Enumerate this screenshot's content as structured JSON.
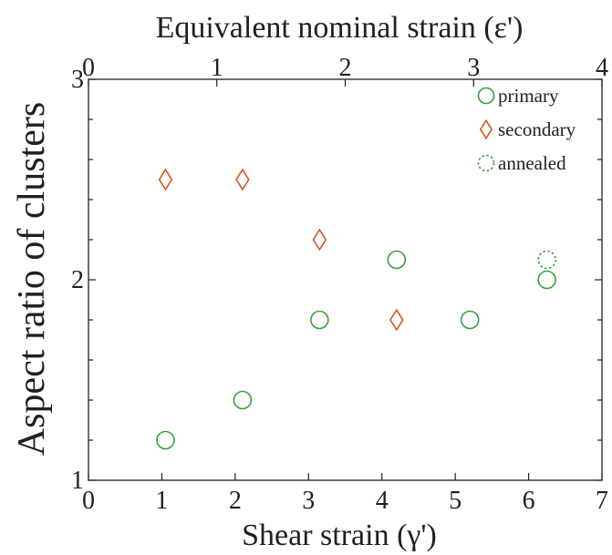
{
  "chart_data": {
    "type": "scatter",
    "xlabel": "Shear strain (γ')",
    "x2label": "Equivalent nominal strain (ε')",
    "ylabel": "Aspect ratio of clusters",
    "xlim": [
      0,
      7
    ],
    "x2lim": [
      0,
      4
    ],
    "ylim": [
      1,
      3
    ],
    "xticks": [
      0,
      1,
      2,
      3,
      4,
      5,
      6,
      7
    ],
    "x2ticks": [
      0,
      1,
      2,
      3,
      4
    ],
    "yticks": [
      1,
      2,
      3
    ],
    "grid": false,
    "legend_position": "top-right",
    "series": [
      {
        "name": "primary",
        "marker": "circle",
        "line": "solid",
        "color": "#3a9e3f",
        "points": [
          {
            "x": 1.05,
            "y": 1.2
          },
          {
            "x": 2.1,
            "y": 1.4
          },
          {
            "x": 3.15,
            "y": 1.8
          },
          {
            "x": 4.2,
            "y": 2.1
          },
          {
            "x": 5.2,
            "y": 1.8
          },
          {
            "x": 6.25,
            "y": 2.0
          }
        ]
      },
      {
        "name": "secondary",
        "marker": "diamond",
        "line": "solid",
        "color": "#d9541e",
        "points": [
          {
            "x": 1.05,
            "y": 2.5
          },
          {
            "x": 2.1,
            "y": 2.5
          },
          {
            "x": 3.15,
            "y": 2.2
          },
          {
            "x": 4.2,
            "y": 1.8
          }
        ]
      },
      {
        "name": "annealed",
        "marker": "circle",
        "line": "dotted",
        "color": "#3a9e3f",
        "points": [
          {
            "x": 6.25,
            "y": 2.1
          }
        ]
      }
    ]
  }
}
